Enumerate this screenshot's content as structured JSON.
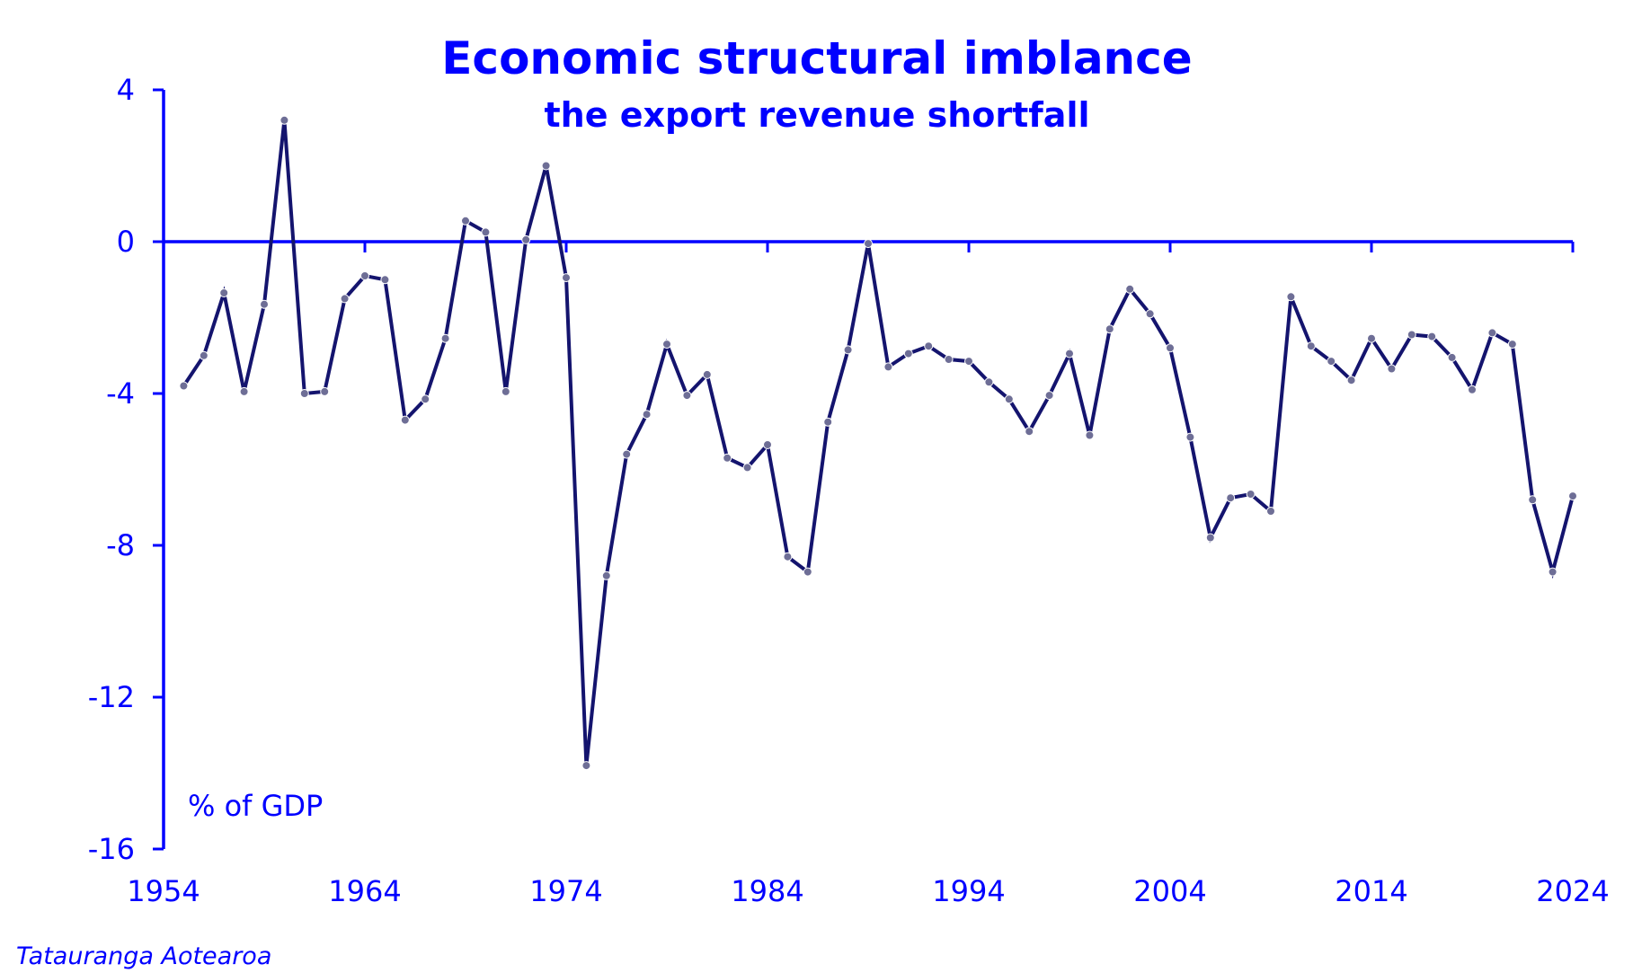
{
  "chart_data": {
    "type": "line",
    "title": "Economic structural imblance",
    "subtitle": "the export revenue shortfall",
    "unit_label": "% of GDP",
    "source": "Tatauranga Aotearoa",
    "xlabel": "",
    "ylabel": "",
    "xlim": [
      1954,
      2024
    ],
    "ylim": [
      -16,
      4
    ],
    "x_ticks": [
      1954,
      1964,
      1974,
      1984,
      1994,
      2004,
      2014,
      2024
    ],
    "y_ticks": [
      4,
      0,
      -4,
      -8,
      -12,
      -16
    ],
    "grid": false,
    "legend": "none",
    "colors": {
      "axis": "#0000ff",
      "line": "#14146e",
      "marker": "#6e6e96"
    },
    "series": [
      {
        "x": [
          1955,
          1956,
          1957,
          1958,
          1959,
          1960,
          1961,
          1962,
          1963,
          1964,
          1965,
          1966,
          1967,
          1968,
          1969,
          1970,
          1971,
          1972,
          1973,
          1974,
          1975,
          1976,
          1977,
          1978,
          1979,
          1980,
          1981,
          1982,
          1983,
          1984,
          1985,
          1986,
          1987,
          1988,
          1989,
          1990,
          1991,
          1992,
          1993,
          1994,
          1995,
          1996,
          1997,
          1998,
          1999,
          2000,
          2001,
          2002,
          2003,
          2004,
          2005,
          2006,
          2007,
          2008,
          2009,
          2010,
          2011,
          2012,
          2013,
          2014,
          2015,
          2016,
          2017,
          2018,
          2019,
          2020,
          2021,
          2022,
          2023,
          2024
        ],
        "values": [
          -3.8,
          -3.0,
          -1.35,
          -3.95,
          -1.65,
          3.2,
          -4.0,
          -3.95,
          -1.5,
          -0.9,
          -1.0,
          -4.7,
          -4.15,
          -2.55,
          0.55,
          0.25,
          -3.95,
          0.05,
          2.0,
          -0.95,
          -13.8,
          -8.8,
          -5.6,
          -4.55,
          -2.7,
          -4.05,
          -3.5,
          -5.7,
          -5.95,
          -5.35,
          -8.3,
          -8.7,
          -4.75,
          -2.85,
          -0.05,
          -3.3,
          -2.95,
          -2.75,
          -3.1,
          -3.15,
          -3.7,
          -4.15,
          -5.0,
          -4.05,
          -2.95,
          -5.1,
          -2.3,
          -1.25,
          -1.9,
          -2.8,
          -5.15,
          -7.8,
          -6.75,
          -6.65,
          -7.1,
          -1.45,
          -2.75,
          -3.15,
          -3.65,
          -2.55,
          -3.35,
          -2.45,
          -2.5,
          -3.05,
          -3.9,
          -2.4,
          -2.7,
          -6.8,
          -8.7,
          -6.7
        ]
      }
    ]
  }
}
